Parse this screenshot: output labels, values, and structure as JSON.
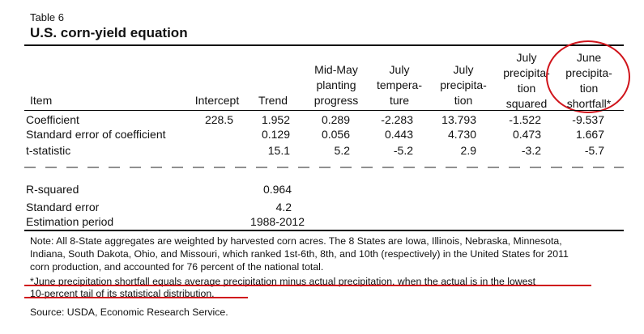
{
  "header": {
    "table_number": "Table 6",
    "title": "U.S. corn-yield equation"
  },
  "columns": [
    {
      "lines": [
        "Item"
      ]
    },
    {
      "lines": [
        "Intercept"
      ]
    },
    {
      "lines": [
        "Trend"
      ]
    },
    {
      "lines": [
        "Mid-May",
        "planting",
        "progress"
      ]
    },
    {
      "lines": [
        "July",
        "tempera-",
        "ture"
      ]
    },
    {
      "lines": [
        "July",
        "precipita-",
        "tion"
      ]
    },
    {
      "lines": [
        "July",
        "precipita-",
        "tion",
        "squared"
      ]
    },
    {
      "lines": [
        "June",
        "precipita-",
        "tion",
        "shortfall*"
      ]
    }
  ],
  "rows": [
    {
      "label": "Coefficient",
      "values": [
        "228.5",
        "1.952",
        "0.289",
        "-2.283",
        "13.793",
        "-1.522",
        "-9.537"
      ]
    },
    {
      "label": "Standard error of coefficient",
      "values": [
        "",
        "0.129",
        "0.056",
        "0.443",
        "4.730",
        "0.473",
        "1.667"
      ]
    },
    {
      "label": "t-statistic",
      "values": [
        "",
        "15.1",
        "5.2",
        "-5.2",
        "2.9",
        "-3.2",
        "-5.7"
      ]
    }
  ],
  "summary": [
    {
      "label": "R-squared",
      "value": "0.964"
    },
    {
      "label": "Standard error",
      "value": "4.2"
    },
    {
      "label": "Estimation period",
      "value": "1988-2012"
    }
  ],
  "notes": {
    "note_lines": [
      "Note: All 8-State aggregates are weighted by harvested corn acres.  The 8 States are Iowa, Illinois, Nebraska, Minnesota,",
      "Indiana, South Dakota, Ohio, and Missouri, which ranked 1st-6th, 8th, and 10th (respectively) in the United States for 2011",
      "corn production, and accounted for 76 percent of the national total."
    ],
    "footnote_lines": [
      "*June precipitation shortfall equals average precipitation minus actual precipitation, when the actual is in the lowest",
      "10-percent tail of its statistical distribution."
    ],
    "source": "Source: USDA, Economic Research Service."
  },
  "annotation_color": "#d0141b"
}
